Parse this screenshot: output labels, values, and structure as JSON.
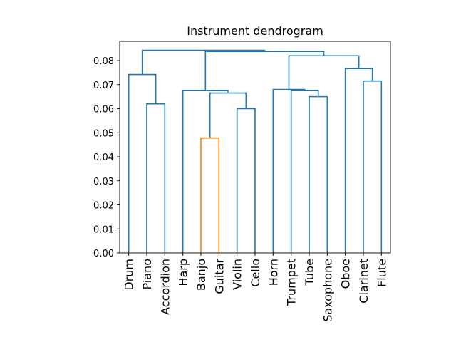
{
  "chart_data": {
    "type": "dendrogram",
    "title": "Instrument dendrogram",
    "xlabel": "",
    "ylabel": "",
    "ylim": [
      0,
      0.088
    ],
    "yticks": [
      "0.00",
      "0.01",
      "0.02",
      "0.03",
      "0.04",
      "0.05",
      "0.06",
      "0.07",
      "0.08"
    ],
    "leaves": [
      "Drum",
      "Piano",
      "Accordion",
      "Harp",
      "Banjo",
      "Guitar",
      "Violin",
      "Cello",
      "Horn",
      "Trumpet",
      "Tube",
      "Saxophone",
      "Oboe",
      "Clarinet",
      "Flute"
    ],
    "colors": {
      "above_threshold": "#1f77b4",
      "cluster_1": "#ff7f0e",
      "axes": "#000000"
    },
    "links": [
      {
        "id": "L0",
        "left": "Banjo",
        "right": "Guitar",
        "height": 0.0478,
        "color": "cluster_1"
      },
      {
        "id": "L1",
        "left": "Violin",
        "right": "Cello",
        "height": 0.06,
        "color": "above_threshold"
      },
      {
        "id": "L2",
        "left": "Piano",
        "right": "Accordion",
        "height": 0.062,
        "color": "above_threshold"
      },
      {
        "id": "L3",
        "left": "Tube",
        "right": "Saxophone",
        "height": 0.065,
        "color": "above_threshold"
      },
      {
        "id": "L4",
        "left": "L0",
        "right": "L1",
        "height": 0.0665,
        "color": "above_threshold"
      },
      {
        "id": "L5",
        "left": "Trumpet",
        "right": "L3",
        "height": 0.0675,
        "color": "above_threshold"
      },
      {
        "id": "L6",
        "left": "Harp",
        "right": "L4",
        "height": 0.0675,
        "color": "above_threshold"
      },
      {
        "id": "L7",
        "left": "Horn",
        "right": "L5",
        "height": 0.068,
        "color": "above_threshold"
      },
      {
        "id": "L8",
        "left": "Clarinet",
        "right": "Flute",
        "height": 0.0715,
        "color": "above_threshold"
      },
      {
        "id": "L9",
        "left": "Drum",
        "right": "L2",
        "height": 0.0742,
        "color": "above_threshold"
      },
      {
        "id": "L10",
        "left": "Oboe",
        "right": "L8",
        "height": 0.0767,
        "color": "above_threshold"
      },
      {
        "id": "L11",
        "left": "L7",
        "right": "L10",
        "height": 0.082,
        "color": "above_threshold"
      },
      {
        "id": "L12",
        "left": "L6",
        "right": "L11",
        "height": 0.0838,
        "color": "above_threshold"
      },
      {
        "id": "L13",
        "left": "L9",
        "right": "L12",
        "height": 0.0843,
        "color": "above_threshold"
      }
    ]
  }
}
